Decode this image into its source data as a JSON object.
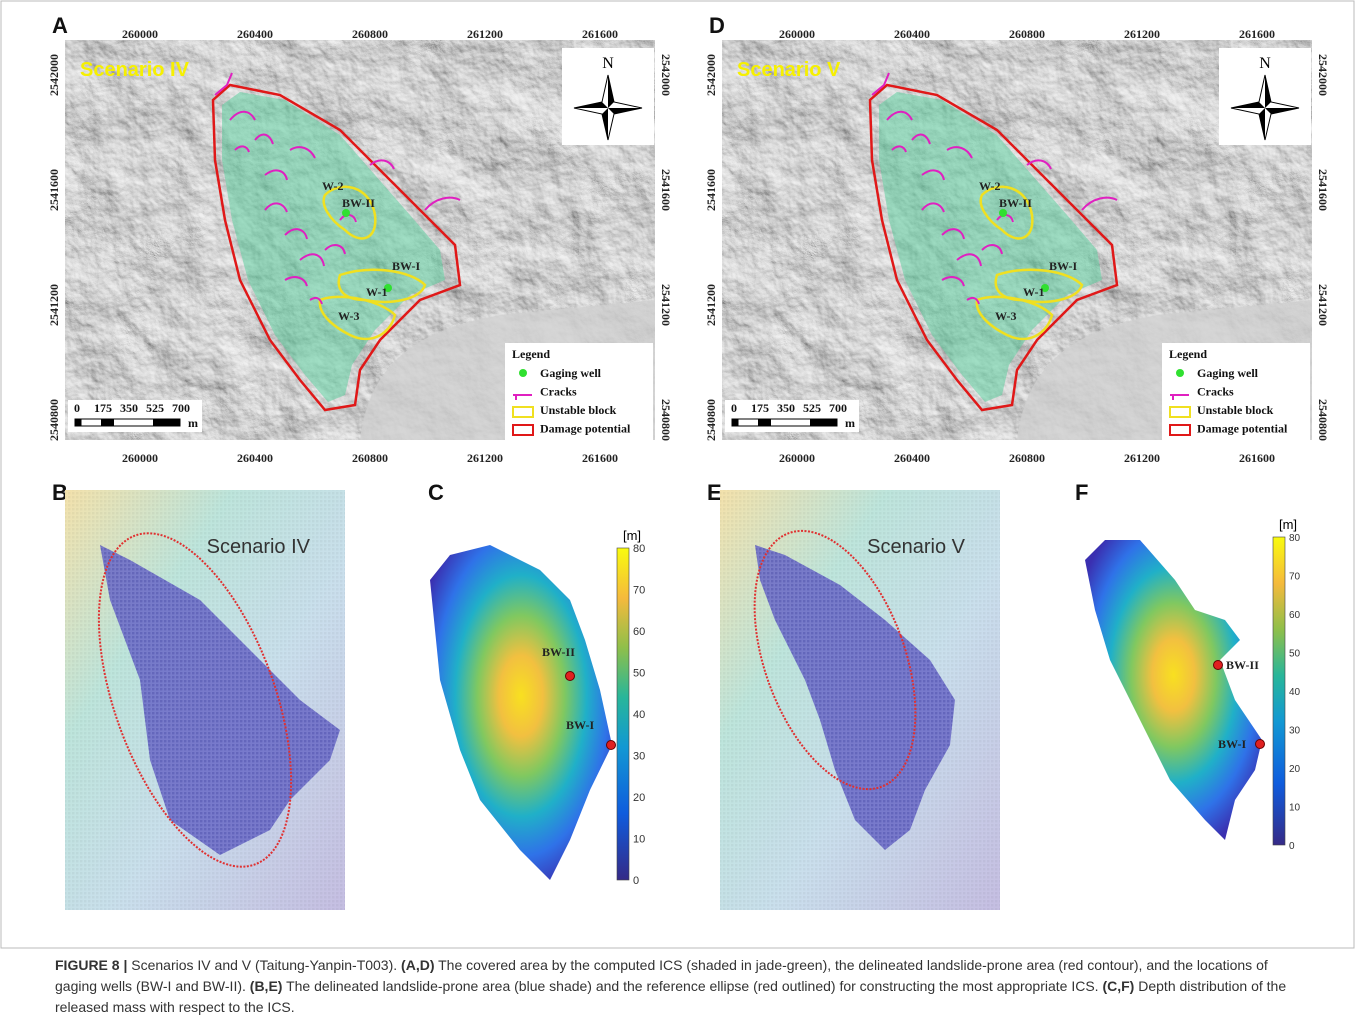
{
  "maps": [
    {
      "letter": "A",
      "scenario": "Scenario IV"
    },
    {
      "letter": "D",
      "scenario": "Scenario V"
    }
  ],
  "x_ticks": [
    260000,
    260400,
    260800,
    261200,
    261600
  ],
  "y_ticks": [
    2542000,
    2541600,
    2541200,
    2540800
  ],
  "north": "N",
  "legend": {
    "title": "Legend",
    "items": [
      "Gaging well",
      "Cracks",
      "Unstable block",
      "Damage potential"
    ]
  },
  "scale": {
    "labels": [
      "0",
      "175",
      "350",
      "525",
      "700"
    ],
    "unit": "m"
  },
  "wells": [
    "BW-I",
    "BW-II"
  ],
  "blocks": [
    "W-1",
    "W-2",
    "W-3"
  ],
  "grids": [
    {
      "letter": "B",
      "scenario": "Scenario IV"
    },
    {
      "letter": "E",
      "scenario": "Scenario V"
    }
  ],
  "depths": [
    {
      "letter": "C"
    },
    {
      "letter": "F"
    }
  ],
  "colorbar": {
    "unit": "[m]",
    "ticks": [
      0,
      10,
      20,
      30,
      40,
      50,
      60,
      70,
      80
    ]
  },
  "caption": {
    "label": "FIGURE 8 |",
    "intro": "Scenarios IV and V (Taitung-Yanpin-T003).",
    "items": [
      {
        "key": "(A,D)",
        "text": "The covered area by the computed ICS (shaded in jade-green), the delineated landslide-prone area (red contour), and the locations of gaging wells (BW-I and BW-II)."
      },
      {
        "key": "(B,E)",
        "text": "The delineated landslide-prone area (blue shade) and the reference ellipse (red outlined) for constructing the most appropriate ICS."
      },
      {
        "key": "(C,F)",
        "text": "Depth distribution of the released mass with respect to the ICS."
      }
    ]
  }
}
